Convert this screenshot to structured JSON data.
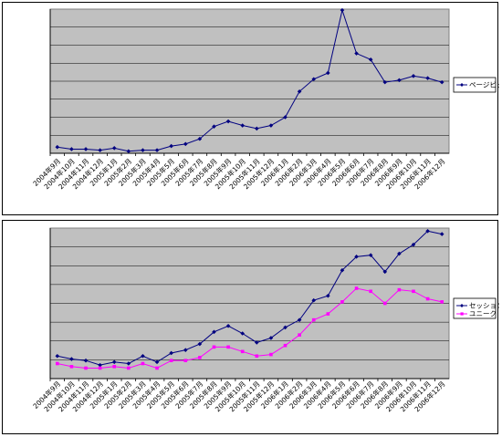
{
  "colors": {
    "plot_bg": "#c0c0c0",
    "gridline": "#000000",
    "series_navy": "#000080",
    "series_magenta": "#ff00ff",
    "page_bg": "#ffffff"
  },
  "chart_data": [
    {
      "type": "line",
      "title": "",
      "xlabel": "",
      "ylabel": "",
      "grid": true,
      "legend_position": "right",
      "y_axis_labels_visible": false,
      "ylim": [
        0,
        10
      ],
      "categories": [
        "2004年9月",
        "2004年10月",
        "2004年11月",
        "2004年12月",
        "2005年1月",
        "2005年2月",
        "2005年3月",
        "2005年4月",
        "2005年5月",
        "2005年6月",
        "2005年7月",
        "2005年8月",
        "2005年9月",
        "2005年10月",
        "2005年11月",
        "2005年12月",
        "2006年1月",
        "2006年2月",
        "2006年3月",
        "2006年4月",
        "2006年5月",
        "2006年6月",
        "2006年7月",
        "2006年8月",
        "2006年9月",
        "2006年10月",
        "2006年11月",
        "2006年12月"
      ],
      "series": [
        {
          "name": "ページビュー",
          "color": "#000080",
          "marker": "diamond",
          "values": [
            0.6,
            0.4,
            0.4,
            0.3,
            0.5,
            0.2,
            0.3,
            0.3,
            0.7,
            0.9,
            1.4,
            2.6,
            3.1,
            2.7,
            2.4,
            2.7,
            3.5,
            6.0,
            7.2,
            7.8,
            13.9,
            9.7,
            9.1,
            6.9,
            7.1,
            7.5,
            7.3,
            6.9
          ]
        }
      ]
    },
    {
      "type": "line",
      "title": "",
      "xlabel": "",
      "ylabel": "",
      "grid": true,
      "legend_position": "right",
      "y_axis_labels_visible": false,
      "ylim": [
        0,
        10
      ],
      "categories": [
        "2004年9月",
        "2004年10月",
        "2004年11月",
        "2004年12月",
        "2005年1月",
        "2005年2月",
        "2005年3月",
        "2005年4月",
        "2005年5月",
        "2005年6月",
        "2005年7月",
        "2005年8月",
        "2005年9月",
        "2005年10月",
        "2005年11月",
        "2005年12月",
        "2006年1月",
        "2006年2月",
        "2006年3月",
        "2006年4月",
        "2006年5月",
        "2006年6月",
        "2006年7月",
        "2006年8月",
        "2006年9月",
        "2006年10月",
        "2006年11月",
        "2006年12月"
      ],
      "series": [
        {
          "name": "セッション",
          "color": "#000080",
          "marker": "diamond",
          "values": [
            1.5,
            1.3,
            1.2,
            0.9,
            1.1,
            1.0,
            1.5,
            1.1,
            1.7,
            1.9,
            2.3,
            3.1,
            3.5,
            3.0,
            2.4,
            2.7,
            3.4,
            3.9,
            5.2,
            5.5,
            7.2,
            8.1,
            8.2,
            7.1,
            8.3,
            8.9,
            9.8,
            9.6
          ]
        },
        {
          "name": "ユニーク",
          "color": "#ff00ff",
          "marker": "square",
          "values": [
            1.0,
            0.8,
            0.7,
            0.7,
            0.8,
            0.7,
            1.0,
            0.7,
            1.2,
            1.2,
            1.4,
            2.1,
            2.1,
            1.8,
            1.5,
            1.6,
            2.2,
            2.9,
            3.9,
            4.3,
            5.1,
            6.0,
            5.8,
            5.0,
            5.9,
            5.8,
            5.3,
            5.1
          ]
        }
      ]
    }
  ]
}
